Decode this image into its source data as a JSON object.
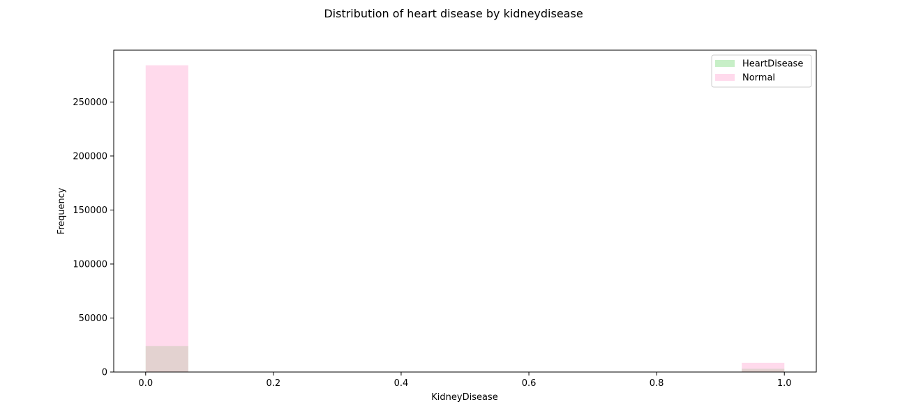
{
  "chart_data": {
    "type": "bar",
    "title": "Distribution of heart disease by kidneydisease",
    "xlabel": "KidneyDisease",
    "ylabel": "Frequency",
    "xlim": [
      -0.05,
      1.05
    ],
    "ylim": [
      0,
      298000
    ],
    "x_ticks": [
      0.0,
      0.2,
      0.4,
      0.6,
      0.8,
      1.0
    ],
    "x_tick_labels": [
      "0.0",
      "0.2",
      "0.4",
      "0.6",
      "0.8",
      "1.0"
    ],
    "y_ticks": [
      0,
      50000,
      100000,
      150000,
      200000,
      250000
    ],
    "y_tick_labels": [
      "0",
      "50000",
      "100000",
      "150000",
      "200000",
      "250000"
    ],
    "bin_width": 0.0667,
    "legend_position": "upper right",
    "grid": false,
    "series": [
      {
        "name": "HeartDisease",
        "color": "#90e090",
        "bins": [
          {
            "x_start": 0.0,
            "value": 24000
          },
          {
            "x_start": 0.9333,
            "value": 3000
          }
        ]
      },
      {
        "name": "Normal",
        "color": "#ffb6d9",
        "bins": [
          {
            "x_start": 0.0,
            "value": 284000
          },
          {
            "x_start": 0.9333,
            "value": 8500
          }
        ]
      }
    ]
  }
}
